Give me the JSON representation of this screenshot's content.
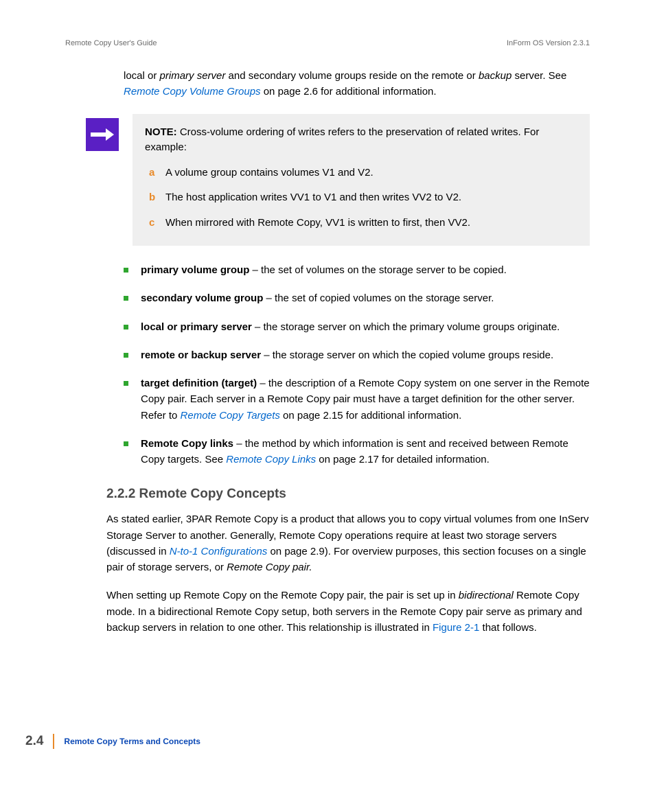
{
  "header": {
    "left": "Remote Copy User's Guide",
    "right": "InForm OS Version 2.3.1"
  },
  "intro": {
    "pre": "local or ",
    "italic1": "primary server",
    "mid": " and secondary volume groups reside on the remote or ",
    "italic2": "backup",
    "post1": " server. See ",
    "link": "Remote Copy Volume Groups",
    "post2": " on page 2.6 for additional information."
  },
  "note": {
    "lead_bold": "NOTE:",
    "lead_text": " Cross-volume ordering of writes refers to the preservation of related writes. For example:",
    "items": [
      {
        "m": "a",
        "t": "A volume group contains volumes V1 and V2."
      },
      {
        "m": "b",
        "t": "The host application writes VV1 to V1 and then writes VV2 to V2."
      },
      {
        "m": "c",
        "t": "When mirrored with Remote Copy, VV1 is written to first, then VV2."
      }
    ]
  },
  "defs": [
    {
      "term": "primary volume group",
      "rest": " – the set of volumes on the storage server to be copied."
    },
    {
      "term": "secondary volume group",
      "rest": " – the set of copied volumes on the storage server."
    },
    {
      "term": "local or primary server",
      "rest": " – the storage server on which the primary volume groups originate."
    },
    {
      "term": "remote or backup server",
      "rest": " – the storage server on which the copied volume groups reside."
    },
    {
      "term": "target definition (target)",
      "rest": " – the description of a Remote Copy system on one server in the Remote Copy pair. Each server in a Remote Copy pair must have a target definition for the other server. Refer to ",
      "link": "Remote Copy Targets",
      "rest2": " on page 2.15 for additional information."
    },
    {
      "term": "Remote Copy links",
      "rest": " – the method by which information is sent and received between Remote Copy targets. See ",
      "link": "Remote Copy Links",
      "rest2": " on page 2.17 for detailed information."
    }
  ],
  "section": {
    "heading": "2.2.2 Remote Copy Concepts",
    "p1a": "As stated earlier, 3PAR Remote Copy is a product that allows you to copy virtual volumes from one InServ Storage Server to another. Generally, Remote Copy operations require at least two storage servers (discussed in ",
    "p1_link": "N-to-1 Configurations",
    "p1b": " on page 2.9). For overview purposes, this section focuses on a single pair of storage servers, or ",
    "p1_italic": "Remote Copy pair.",
    "p2a": "When setting up Remote Copy on the Remote Copy pair, the pair is set up in ",
    "p2_italic": "bidirectional",
    "p2b": " Remote Copy mode. In a bidirectional Remote Copy setup, both servers in the Remote Copy pair serve as primary and backup servers in relation to one other. This relationship is illustrated in ",
    "p2_link": "Figure 2-1",
    "p2c": " that follows."
  },
  "footer": {
    "page": "2.4",
    "title": "Remote Copy Terms and Concepts"
  }
}
